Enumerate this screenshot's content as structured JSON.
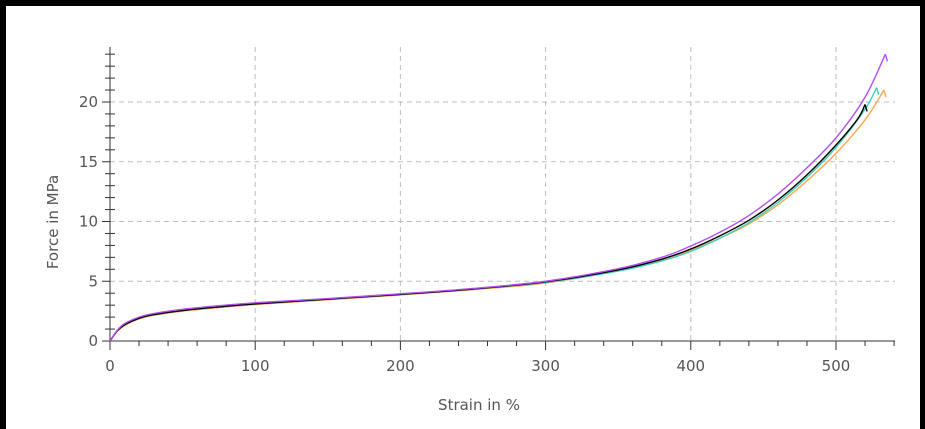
{
  "chart_data": {
    "type": "line",
    "title": "",
    "xlabel": "Strain in %",
    "ylabel": "Force in MPa",
    "xlim": [
      0,
      540
    ],
    "ylim": [
      0,
      24.5
    ],
    "x_ticks": [
      0,
      100,
      200,
      300,
      400,
      500
    ],
    "y_ticks": [
      0,
      5,
      10,
      15,
      20
    ],
    "grid": true,
    "legend": "none",
    "series": [
      {
        "color": "#ffa64d",
        "x": [
          0,
          5,
          10,
          20,
          30,
          50,
          75,
          100,
          150,
          200,
          250,
          300,
          350,
          380,
          400,
          420,
          440,
          460,
          480,
          500,
          520,
          533
        ],
        "y": [
          0,
          0.8,
          1.3,
          1.85,
          2.15,
          2.5,
          2.8,
          3.05,
          3.45,
          3.85,
          4.3,
          4.85,
          5.9,
          6.8,
          7.6,
          8.6,
          9.8,
          11.4,
          13.4,
          15.7,
          18.5,
          21.0
        ]
      },
      {
        "color": "#3ccfb8",
        "x": [
          0,
          5,
          10,
          20,
          30,
          50,
          75,
          100,
          150,
          200,
          250,
          300,
          350,
          380,
          400,
          420,
          440,
          460,
          480,
          500,
          520,
          528
        ],
        "y": [
          0,
          0.85,
          1.35,
          1.9,
          2.2,
          2.55,
          2.85,
          3.1,
          3.5,
          3.9,
          4.35,
          4.9,
          5.85,
          6.7,
          7.5,
          8.6,
          9.9,
          11.6,
          13.7,
          16.2,
          19.4,
          21.2
        ]
      },
      {
        "color": "#000000",
        "x": [
          0,
          5,
          10,
          20,
          30,
          50,
          75,
          100,
          150,
          200,
          250,
          300,
          350,
          380,
          400,
          420,
          440,
          460,
          480,
          500,
          515,
          520
        ],
        "y": [
          0,
          0.85,
          1.35,
          1.9,
          2.2,
          2.55,
          2.85,
          3.1,
          3.5,
          3.9,
          4.35,
          4.95,
          5.95,
          6.85,
          7.7,
          8.8,
          10.1,
          11.8,
          13.9,
          16.4,
          18.6,
          19.8
        ]
      },
      {
        "color": "#b44cf0",
        "x": [
          0,
          5,
          10,
          20,
          30,
          50,
          75,
          100,
          150,
          200,
          250,
          300,
          350,
          380,
          400,
          420,
          440,
          460,
          480,
          500,
          520,
          534
        ],
        "y": [
          0,
          0.9,
          1.45,
          2.0,
          2.3,
          2.65,
          2.95,
          3.2,
          3.55,
          3.95,
          4.4,
          5.0,
          6.05,
          7.0,
          7.95,
          9.1,
          10.5,
          12.3,
          14.5,
          17.0,
          20.4,
          24.0
        ]
      }
    ]
  }
}
